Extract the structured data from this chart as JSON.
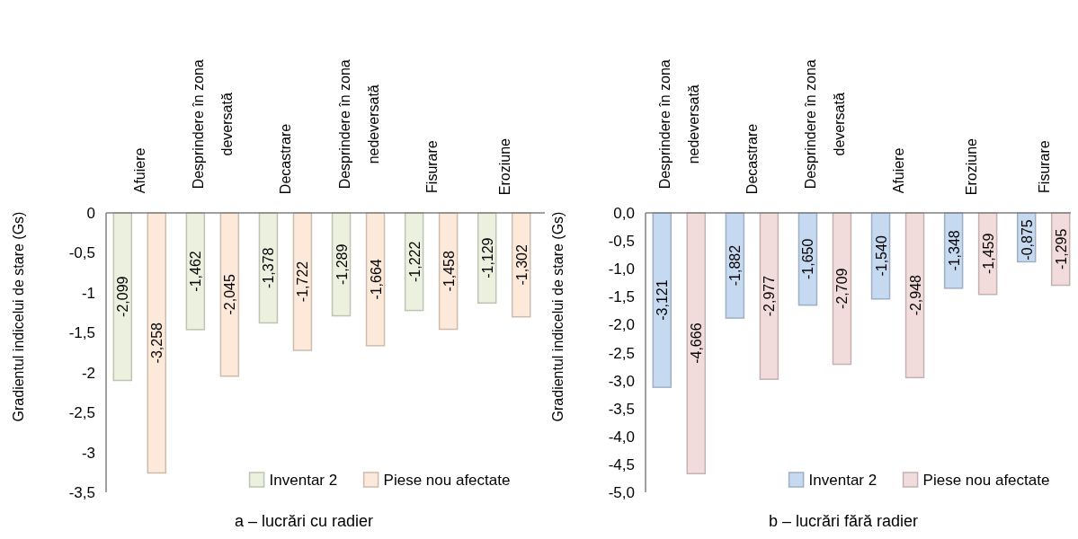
{
  "chart_data": [
    {
      "type": "bar",
      "title": "a – lucrări cu radier",
      "ylabel": "Gradientul indicelui de stare (Gs)",
      "categories": [
        "Afuiere",
        "Desprindere în zona deversată",
        "Decastrare",
        "Desprindere în zona nedeversată",
        "Fisurare",
        "Eroziune"
      ],
      "series": [
        {
          "name": "Inventar 2",
          "color": "#ebf1de",
          "values": [
            -2.099,
            -1.462,
            -1.378,
            -1.289,
            -1.222,
            -1.129
          ],
          "value_labels": [
            "-2,099",
            "-1,462",
            "-1,378",
            "-1,289",
            "-1,222",
            "-1,129"
          ]
        },
        {
          "name": "Piese nou afectate",
          "color": "#fde9d9",
          "values": [
            -3.258,
            -2.045,
            -1.722,
            -1.664,
            -1.458,
            -1.302
          ],
          "value_labels": [
            "-3,258",
            "-2,045",
            "-1,722",
            "-1,664",
            "-1,458",
            "-1,302"
          ]
        }
      ],
      "ylim": [
        -3.5,
        0
      ],
      "yticks": [
        0,
        {
          "value": -0.5,
          "label": "-0,5"
        },
        {
          "value": -1,
          "label": "-1"
        },
        {
          "value": -1.5,
          "label": "-1,5"
        },
        {
          "value": -2,
          "label": "-2"
        },
        {
          "value": -2.5,
          "label": "-2,5"
        },
        {
          "value": -3,
          "label": "-3"
        },
        {
          "value": -3.5,
          "label": "-3,5"
        }
      ],
      "legend": "bottom right",
      "grid": false
    },
    {
      "type": "bar",
      "title": "b – lucrări fără radier",
      "ylabel": "Gradientul indicelui de stare (Gs)",
      "categories": [
        "Desprindere în zona nedeversată",
        "Decastrare",
        "Desprindere în zona deversată",
        "Afuiere",
        "Eroziune",
        "Fisurare"
      ],
      "series": [
        {
          "name": "Inventar 2",
          "color": "#c5d9f1",
          "values": [
            -3.121,
            -1.882,
            -1.65,
            -1.54,
            -1.348,
            -0.875
          ],
          "value_labels": [
            "-3,121",
            "-1,882",
            "-1,650",
            "-1,540",
            "-1,348",
            "-0,875"
          ]
        },
        {
          "name": "Piese nou afectate",
          "color": "#f2dcdb",
          "values": [
            -4.666,
            -2.977,
            -2.709,
            -2.948,
            -1.459,
            -1.295
          ],
          "value_labels": [
            "-4,666",
            "-2,977",
            "-2,709",
            "-2,948",
            "-1,459",
            "-1,295"
          ]
        }
      ],
      "ylim": [
        -5,
        0
      ],
      "yticks": [
        {
          "value": 0,
          "label": "0,0"
        },
        {
          "value": -0.5,
          "label": "-0,5"
        },
        {
          "value": -1,
          "label": "-1,0"
        },
        {
          "value": -1.5,
          "label": "-1,5"
        },
        {
          "value": -2,
          "label": "-2,0"
        },
        {
          "value": -2.5,
          "label": "-2,5"
        },
        {
          "value": -3,
          "label": "-3,0"
        },
        {
          "value": -3.5,
          "label": "-3,5"
        },
        {
          "value": -4,
          "label": "-4,0"
        },
        {
          "value": -4.5,
          "label": "-4,5"
        },
        {
          "value": -5,
          "label": "-5,0"
        }
      ],
      "legend": "bottom right",
      "grid": false
    }
  ]
}
